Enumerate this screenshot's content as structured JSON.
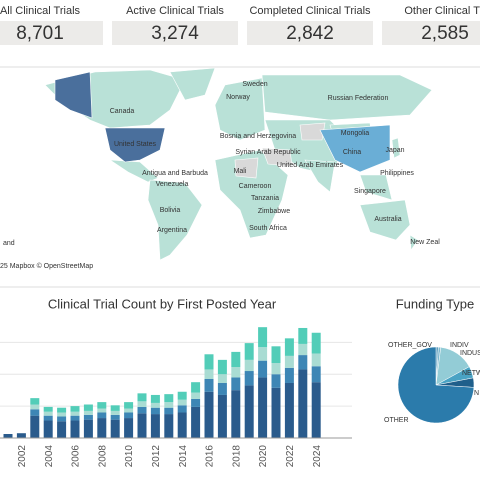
{
  "kpis": [
    {
      "title": "All Clinical Trials",
      "value": "8,701"
    },
    {
      "title": "Active Clinical Trials",
      "value": "3,274"
    },
    {
      "title": "Completed Clinical Trials",
      "value": "2,842"
    },
    {
      "title": "Other Clinical Tri",
      "value": "2,585"
    }
  ],
  "map": {
    "labels": [
      "Canada",
      "United States",
      "Russian Federation",
      "Mongolia",
      "China",
      "Japan",
      "Sweden",
      "Norway",
      "Bosnia and Herzegovina",
      "Syrian Arab Republic",
      "United Arab Emirates",
      "Mali",
      "Cameroon",
      "Tanzania",
      "Zimbabwe",
      "South Africa",
      "Antigua and Barbuda",
      "Venezuela",
      "Bolivia",
      "Argentina",
      "Philippines",
      "Singapore",
      "Australia",
      "New Zeal",
      "and"
    ],
    "attribution": "25 Mapbox © OpenStreetMap"
  },
  "chart_data": [
    {
      "type": "bar",
      "stacked": true,
      "title": "Clinical Trial Count by First Posted Year",
      "categories": [
        null,
        "2002",
        null,
        "2004",
        null,
        "2006",
        null,
        "2008",
        null,
        "2010",
        null,
        "2012",
        null,
        "2014",
        null,
        "2016",
        null,
        "2018",
        null,
        "2020",
        null,
        "2022",
        null,
        "2024"
      ],
      "series": [
        {
          "color": "#2a5b8c",
          "values": [
            25,
            30,
            140,
            110,
            105,
            110,
            115,
            125,
            115,
            125,
            155,
            150,
            150,
            160,
            195,
            290,
            270,
            300,
            330,
            380,
            315,
            345,
            430,
            350
          ]
        },
        {
          "color": "#3d86b5",
          "values": [
            0,
            0,
            40,
            30,
            30,
            30,
            30,
            35,
            30,
            35,
            40,
            40,
            40,
            45,
            50,
            80,
            75,
            80,
            90,
            105,
            85,
            95,
            90,
            100
          ]
        },
        {
          "color": "#a9dcd3",
          "values": [
            0,
            0,
            30,
            25,
            25,
            25,
            25,
            25,
            25,
            25,
            35,
            30,
            35,
            35,
            40,
            60,
            55,
            65,
            70,
            85,
            70,
            75,
            70,
            80
          ]
        },
        {
          "color": "#52cdb8",
          "values": [
            0,
            0,
            40,
            30,
            30,
            35,
            40,
            40,
            35,
            40,
            50,
            50,
            50,
            50,
            65,
            95,
            90,
            95,
            105,
            125,
            105,
            110,
            100,
            130
          ]
        }
      ],
      "ylim": [
        0,
        740
      ],
      "yticks": [
        200,
        400,
        600
      ],
      "grid": true
    },
    {
      "type": "pie",
      "title": "Funding Type",
      "labels": [
        "OTHER_GOV",
        "INDIV",
        "INDUS",
        "NETW",
        "N",
        "OTHER"
      ],
      "values": [
        1,
        1,
        15,
        5,
        4,
        74
      ],
      "colors": [
        "#5f9fbf",
        "#7fb8cf",
        "#93ccd6",
        "#4aa3c4",
        "#1f5f8b",
        "#2b7bab"
      ]
    }
  ]
}
